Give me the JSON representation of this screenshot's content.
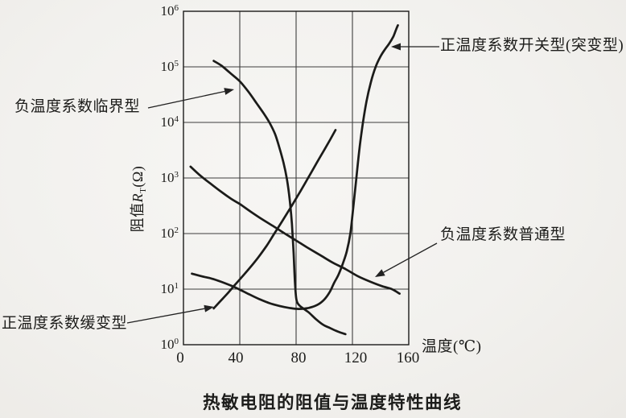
{
  "title": "热敏电阻的阻值与温度特性曲线",
  "colors": {
    "ink": "#1b1b19",
    "grid": "#3d3d3d",
    "paper": "#f2f1ee",
    "arrow": "#222222"
  },
  "chart_data": {
    "type": "line",
    "title": "热敏电阻的阻值与温度特性曲线",
    "grid": true,
    "legend_position": "annotated-arrows",
    "x_axis": {
      "title": "温度(℃)",
      "scale": "linear",
      "range": [
        0,
        160
      ],
      "ticks": [
        0,
        40,
        80,
        120,
        160
      ],
      "tick_labels": [
        "0",
        "40",
        "80",
        "120",
        "160"
      ]
    },
    "y_axis": {
      "label_zh": "阻值",
      "label_var": "R",
      "label_sub": "T",
      "label_unit": "(Ω)",
      "scale": "log",
      "range": [
        1,
        1000000
      ],
      "ticks": [
        {
          "base": "10",
          "exp": "6"
        },
        {
          "base": "10",
          "exp": "5"
        },
        {
          "base": "10",
          "exp": "4"
        },
        {
          "base": "10",
          "exp": "3"
        },
        {
          "base": "10",
          "exp": "2"
        },
        {
          "base": "10",
          "exp": "1"
        },
        {
          "base": "10",
          "exp": "0"
        }
      ]
    },
    "series": [
      {
        "id": "ntc_critical",
        "name": "负温度系数临界型",
        "points": [
          [
            21.5,
            128000
          ],
          [
            27,
            105000
          ],
          [
            33,
            78000
          ],
          [
            40,
            55000
          ],
          [
            46,
            36000
          ],
          [
            52,
            22000
          ],
          [
            57,
            14500
          ],
          [
            61,
            10000
          ],
          [
            65,
            6200
          ],
          [
            68,
            3600
          ],
          [
            71,
            1900
          ],
          [
            73.5,
            950
          ],
          [
            75.5,
            400
          ],
          [
            77,
            150
          ],
          [
            78.2,
            45
          ],
          [
            79.2,
            13
          ],
          [
            80.2,
            6.5
          ],
          [
            82,
            5.2
          ],
          [
            85,
            4.5
          ],
          [
            89,
            3.8
          ],
          [
            94,
            2.9
          ],
          [
            99,
            2.3
          ],
          [
            104,
            2.0
          ],
          [
            109,
            1.75
          ],
          [
            115,
            1.55
          ]
        ]
      },
      {
        "id": "ptc_switching",
        "name": "正温度系数开关型(突变型)",
        "points": [
          [
            6,
            19
          ],
          [
            13,
            17
          ],
          [
            20,
            15.5
          ],
          [
            27,
            13.5
          ],
          [
            34,
            11.5
          ],
          [
            40,
            9.8
          ],
          [
            47,
            8
          ],
          [
            54,
            6.6
          ],
          [
            61,
            5.6
          ],
          [
            68,
            5.0
          ],
          [
            75,
            4.6
          ],
          [
            82,
            4.4
          ],
          [
            89,
            4.6
          ],
          [
            95,
            5.2
          ],
          [
            100,
            6.5
          ],
          [
            104,
            9
          ],
          [
            107,
            13
          ],
          [
            110,
            18
          ],
          [
            113,
            28
          ],
          [
            116,
            48
          ],
          [
            118.5,
            100
          ],
          [
            120.5,
            280
          ],
          [
            122.8,
            1000
          ],
          [
            125,
            3400
          ],
          [
            127.5,
            10000
          ],
          [
            130,
            24000
          ],
          [
            133,
            52000
          ],
          [
            136.5,
            100000
          ],
          [
            140,
            155000
          ],
          [
            143,
            205000
          ],
          [
            146,
            260000
          ],
          [
            149,
            350000
          ],
          [
            151,
            470000
          ],
          [
            152.3,
            560000
          ]
        ]
      },
      {
        "id": "ntc_ordinary",
        "name": "负温度系数普通型",
        "points": [
          [
            5,
            1600
          ],
          [
            12,
            1100
          ],
          [
            19,
            800
          ],
          [
            27,
            560
          ],
          [
            34,
            420
          ],
          [
            40,
            340
          ],
          [
            48,
            245
          ],
          [
            56,
            180
          ],
          [
            64,
            135
          ],
          [
            72,
            100
          ],
          [
            80,
            75
          ],
          [
            88,
            56
          ],
          [
            97,
            41
          ],
          [
            106,
            30
          ],
          [
            115,
            23
          ],
          [
            124,
            17
          ],
          [
            133,
            13.5
          ],
          [
            141,
            11.3
          ],
          [
            148,
            10
          ],
          [
            153.5,
            8.3
          ]
        ]
      },
      {
        "id": "ptc_slow",
        "name": "正温度系数缓变型",
        "points": [
          [
            21.5,
            4.5
          ],
          [
            26,
            6
          ],
          [
            31,
            8.2
          ],
          [
            36,
            11.5
          ],
          [
            41,
            16
          ],
          [
            47,
            24
          ],
          [
            53,
            37
          ],
          [
            59,
            60
          ],
          [
            64,
            95
          ],
          [
            70,
            165
          ],
          [
            76,
            290
          ],
          [
            82,
            520
          ],
          [
            88,
            950
          ],
          [
            94,
            1750
          ],
          [
            99,
            2900
          ],
          [
            104,
            4800
          ],
          [
            108,
            7300
          ]
        ]
      }
    ],
    "annotations": [
      {
        "series": "ntc_critical",
        "side": "left"
      },
      {
        "series": "ptc_switching",
        "side": "right"
      },
      {
        "series": "ntc_ordinary",
        "side": "right"
      },
      {
        "series": "ptc_slow",
        "side": "left"
      }
    ]
  }
}
